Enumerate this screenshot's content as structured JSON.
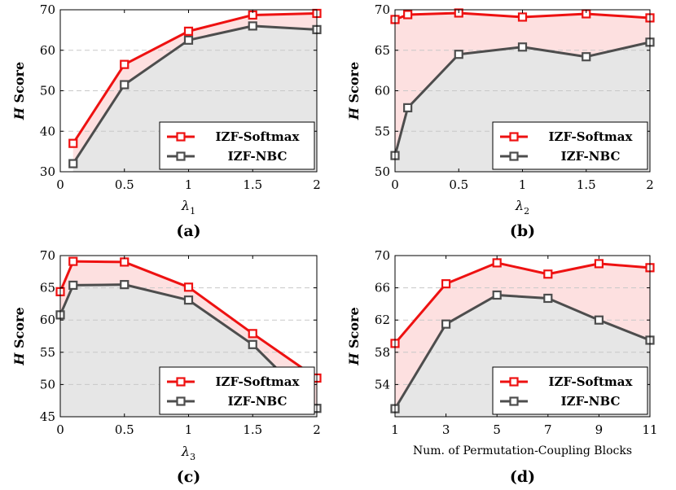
{
  "chart_data": [
    {
      "type": "line",
      "caption": "(a)",
      "ylabel_italic": "H",
      "ylabel_rest": " Score",
      "xlabel_symbol": "λ",
      "xlabel_sub": "1",
      "x": [
        0.1,
        0.5,
        1,
        1.5,
        2
      ],
      "xlim": [
        0,
        2
      ],
      "xticks": [
        0,
        0.5,
        1,
        1.5,
        2
      ],
      "xtick_labels": [
        "0",
        "0.5",
        "1",
        "1.5",
        "2"
      ],
      "ylim": [
        30,
        70
      ],
      "yticks": [
        30,
        40,
        50,
        60,
        70
      ],
      "series": [
        {
          "name": "IZF-Softmax",
          "values": [
            37.0,
            56.5,
            64.7,
            68.7,
            69.1
          ]
        },
        {
          "name": "IZF-NBC",
          "values": [
            32.0,
            51.5,
            62.5,
            66.0,
            65.1
          ]
        }
      ],
      "legend": "bottom-right",
      "grid": "y-dashed"
    },
    {
      "type": "line",
      "caption": "(b)",
      "ylabel_italic": "H",
      "ylabel_rest": " Score",
      "xlabel_symbol": "λ",
      "xlabel_sub": "2",
      "x": [
        0,
        0.1,
        0.5,
        1,
        1.5,
        2
      ],
      "xlim": [
        0,
        2
      ],
      "xticks": [
        0,
        0.5,
        1,
        1.5,
        2
      ],
      "xtick_labels": [
        "0",
        "0.5",
        "1",
        "1.5",
        "2"
      ],
      "ylim": [
        50,
        70
      ],
      "yticks": [
        50,
        55,
        60,
        65,
        70
      ],
      "series": [
        {
          "name": "IZF-Softmax",
          "values": [
            68.8,
            69.4,
            69.6,
            69.1,
            69.5,
            69.0
          ]
        },
        {
          "name": "IZF-NBC",
          "values": [
            52.0,
            57.9,
            64.5,
            65.4,
            64.2,
            66.0
          ]
        }
      ],
      "legend": "bottom-right",
      "grid": "y-dashed"
    },
    {
      "type": "line",
      "caption": "(c)",
      "ylabel_italic": "H",
      "ylabel_rest": " Score",
      "xlabel_symbol": "λ",
      "xlabel_sub": "3",
      "x": [
        0,
        0.1,
        0.5,
        1,
        1.5,
        2
      ],
      "xlim": [
        0,
        2
      ],
      "xticks": [
        0,
        0.5,
        1,
        1.5,
        2
      ],
      "xtick_labels": [
        "0",
        "0.5",
        "1",
        "1.5",
        "2"
      ],
      "ylim": [
        45,
        70
      ],
      "yticks": [
        45,
        50,
        55,
        60,
        65,
        70
      ],
      "series": [
        {
          "name": "IZF-Softmax",
          "values": [
            64.4,
            69.1,
            69.0,
            65.1,
            57.9,
            51.0
          ]
        },
        {
          "name": "IZF-NBC",
          "values": [
            60.8,
            65.4,
            65.5,
            63.1,
            56.2,
            46.3
          ]
        }
      ],
      "legend": "bottom-right",
      "grid": "y-dashed"
    },
    {
      "type": "line",
      "caption": "(d)",
      "ylabel_italic": "H",
      "ylabel_rest": " Score",
      "xlabel_text": "Num. of Permutation-Coupling Blocks",
      "x": [
        1,
        3,
        5,
        7,
        9,
        11
      ],
      "xlim": [
        1,
        11
      ],
      "xticks": [
        1,
        3,
        5,
        7,
        9,
        11
      ],
      "xtick_labels": [
        "1",
        "3",
        "5",
        "7",
        "9",
        "11"
      ],
      "ylim": [
        50,
        70
      ],
      "yticks": [
        54,
        58,
        62,
        66,
        70
      ],
      "series": [
        {
          "name": "IZF-Softmax",
          "values": [
            59.1,
            66.5,
            69.1,
            67.7,
            69.0,
            68.5
          ]
        },
        {
          "name": "IZF-NBC",
          "values": [
            51.0,
            61.5,
            65.1,
            64.7,
            62.0,
            59.5
          ]
        }
      ],
      "legend": "bottom-right",
      "grid": "y-dashed"
    }
  ],
  "colors": {
    "softmax_line": "#ee1111",
    "nbc_line": "#4d4d4d",
    "softmax_fill": "#fde0e0",
    "nbc_fill": "#e6e6e6",
    "grid": "#c8c8c8"
  }
}
